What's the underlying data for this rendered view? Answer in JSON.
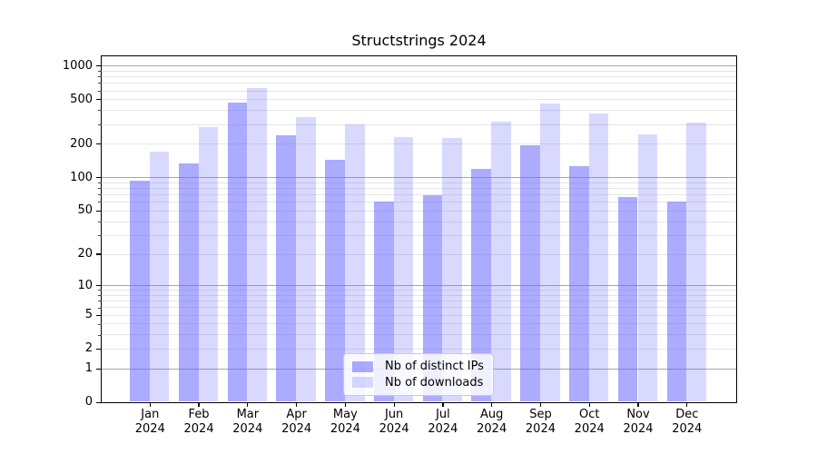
{
  "chart_data": {
    "type": "bar",
    "title": "Structstrings 2024",
    "scale": "log(1+x)",
    "grid": true,
    "legend_position": "lower center",
    "categories": [
      "Jan 2024",
      "Feb 2024",
      "Mar 2024",
      "Apr 2024",
      "May 2024",
      "Jun 2024",
      "Jul 2024",
      "Aug 2024",
      "Sep 2024",
      "Oct 2024",
      "Nov 2024",
      "Dec 2024"
    ],
    "series": [
      {
        "name": "Nb of distinct IPs",
        "color": "rgba(102,102,255,0.55)",
        "values": [
          93,
          133,
          470,
          240,
          143,
          60,
          69,
          119,
          193,
          125,
          66,
          60
        ]
      },
      {
        "name": "Nb of downloads",
        "color": "rgba(102,102,255,0.25)",
        "values": [
          170,
          280,
          630,
          345,
          300,
          228,
          224,
          318,
          462,
          371,
          245,
          312
        ]
      }
    ],
    "yticks": [
      0,
      1,
      2,
      5,
      10,
      20,
      50,
      100,
      200,
      500,
      1000
    ],
    "ylim": [
      0,
      1200
    ],
    "xlabel": "",
    "ylabel": ""
  },
  "colors": {
    "major_grid": "#a6a6a6",
    "minor_grid": "#e5e5e5",
    "axis": "#000000"
  }
}
